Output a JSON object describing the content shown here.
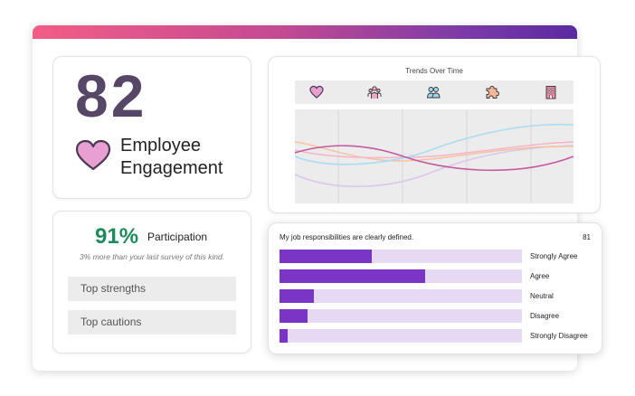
{
  "engagement": {
    "score": "82",
    "label_line1": "Employee",
    "label_line2": "Engagement"
  },
  "participation": {
    "percent": "91%",
    "label": "Participation",
    "comparison": "3% more than your last survey of this kind.",
    "top_strengths": "Top strengths",
    "top_cautions": "Top cautions"
  },
  "trends": {
    "title": "Trends Over Time",
    "icons": [
      "heart-icon",
      "team-icon",
      "people-icon",
      "puzzle-icon",
      "building-icon"
    ]
  },
  "question": {
    "text": "My job responsibilities are clearly defined.",
    "count": "81",
    "responses": [
      {
        "label": "Strongly Agree",
        "value": 0.38
      },
      {
        "label": "Agree",
        "value": 0.6
      },
      {
        "label": "Neutral",
        "value": 0.14
      },
      {
        "label": "Disagree",
        "value": 0.115
      },
      {
        "label": "Strongly Disagree",
        "value": 0.035
      }
    ]
  },
  "colors": {
    "accent_purple": "#7a35c6",
    "bar_track": "#e6d9f4",
    "score_color": "#564766",
    "participation_green": "#1f8a5b",
    "heart_fill": "#e8a0d0"
  }
}
